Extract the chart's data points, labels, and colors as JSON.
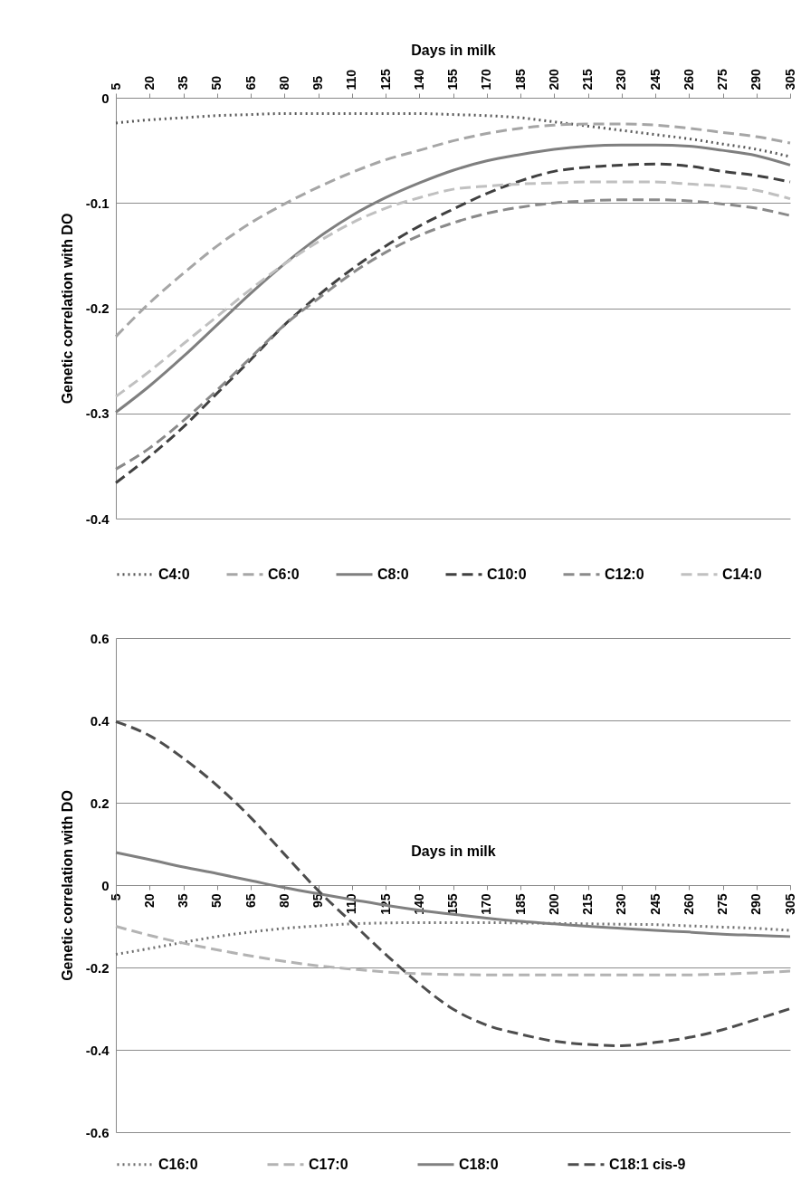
{
  "chart_data": [
    {
      "type": "line",
      "xlabel": "Days in milk",
      "ylabel": "Genetic correlation with DO",
      "x": [
        5,
        20,
        35,
        50,
        65,
        80,
        95,
        110,
        125,
        140,
        155,
        170,
        185,
        200,
        215,
        230,
        245,
        260,
        275,
        290,
        305
      ],
      "xlim": [
        5,
        305
      ],
      "xticks": [
        5,
        20,
        35,
        50,
        65,
        80,
        95,
        110,
        125,
        140,
        155,
        170,
        185,
        200,
        215,
        230,
        245,
        260,
        275,
        290,
        305
      ],
      "ylim": [
        -0.4,
        0
      ],
      "yticks": [
        -0.4,
        -0.3,
        -0.2,
        -0.1,
        0
      ],
      "grid": "y",
      "legend": "bottom",
      "series": [
        {
          "name": "C4:0",
          "color": "#595959",
          "line_style": "dotted",
          "values": [
            -0.024,
            -0.021,
            -0.019,
            -0.017,
            -0.016,
            -0.015,
            -0.015,
            -0.015,
            -0.015,
            -0.015,
            -0.016,
            -0.017,
            -0.019,
            -0.023,
            -0.027,
            -0.031,
            -0.035,
            -0.039,
            -0.044,
            -0.049,
            -0.056
          ]
        },
        {
          "name": "C6:0",
          "color": "#a6a6a6",
          "line_style": "dashed",
          "values": [
            -0.227,
            -0.195,
            -0.167,
            -0.141,
            -0.119,
            -0.101,
            -0.085,
            -0.071,
            -0.059,
            -0.05,
            -0.041,
            -0.034,
            -0.029,
            -0.026,
            -0.025,
            -0.025,
            -0.026,
            -0.029,
            -0.033,
            -0.037,
            -0.043
          ]
        },
        {
          "name": "C8:0",
          "color": "#7f7f7f",
          "line_style": "solid",
          "values": [
            -0.299,
            -0.274,
            -0.246,
            -0.216,
            -0.186,
            -0.158,
            -0.133,
            -0.112,
            -0.095,
            -0.081,
            -0.069,
            -0.06,
            -0.054,
            -0.049,
            -0.046,
            -0.045,
            -0.045,
            -0.046,
            -0.05,
            -0.055,
            -0.064
          ]
        },
        {
          "name": "C10:0",
          "color": "#404040",
          "line_style": "dashed",
          "values": [
            -0.366,
            -0.341,
            -0.313,
            -0.281,
            -0.249,
            -0.216,
            -0.188,
            -0.163,
            -0.141,
            -0.122,
            -0.106,
            -0.091,
            -0.079,
            -0.07,
            -0.066,
            -0.064,
            -0.063,
            -0.065,
            -0.07,
            -0.074,
            -0.08
          ]
        },
        {
          "name": "C12:0",
          "color": "#8a8a8a",
          "line_style": "dashed",
          "values": [
            -0.353,
            -0.333,
            -0.307,
            -0.278,
            -0.247,
            -0.216,
            -0.191,
            -0.167,
            -0.147,
            -0.131,
            -0.119,
            -0.11,
            -0.104,
            -0.1,
            -0.098,
            -0.097,
            -0.097,
            -0.098,
            -0.101,
            -0.105,
            -0.112
          ]
        },
        {
          "name": "C14:0",
          "color": "#c0c0c0",
          "line_style": "dashed",
          "values": [
            -0.284,
            -0.26,
            -0.234,
            -0.208,
            -0.182,
            -0.158,
            -0.137,
            -0.119,
            -0.105,
            -0.095,
            -0.087,
            -0.084,
            -0.082,
            -0.081,
            -0.08,
            -0.08,
            -0.08,
            -0.082,
            -0.084,
            -0.088,
            -0.096
          ]
        }
      ]
    },
    {
      "type": "line",
      "xlabel": "Days in milk",
      "ylabel": "Genetic correlation with DO",
      "x": [
        5,
        20,
        35,
        50,
        65,
        80,
        95,
        110,
        125,
        140,
        155,
        170,
        185,
        200,
        215,
        230,
        245,
        260,
        275,
        290,
        305
      ],
      "xlim": [
        5,
        305
      ],
      "xticks": [
        5,
        20,
        35,
        50,
        65,
        80,
        95,
        110,
        125,
        140,
        155,
        170,
        185,
        200,
        215,
        230,
        245,
        260,
        275,
        290,
        305
      ],
      "ylim": [
        -0.6,
        0.6
      ],
      "yticks": [
        -0.6,
        -0.4,
        -0.2,
        0,
        0.2,
        0.4,
        0.6
      ],
      "grid": "y",
      "legend": "bottom",
      "series": [
        {
          "name": "C16:0",
          "color": "#6f6f6f",
          "line_style": "dotted",
          "values": [
            -0.168,
            -0.154,
            -0.139,
            -0.125,
            -0.114,
            -0.105,
            -0.099,
            -0.094,
            -0.092,
            -0.091,
            -0.091,
            -0.091,
            -0.092,
            -0.093,
            -0.094,
            -0.095,
            -0.096,
            -0.099,
            -0.102,
            -0.105,
            -0.11
          ]
        },
        {
          "name": "C17:0",
          "color": "#b3b3b3",
          "line_style": "dashed",
          "values": [
            -0.1,
            -0.122,
            -0.141,
            -0.157,
            -0.172,
            -0.185,
            -0.196,
            -0.204,
            -0.211,
            -0.215,
            -0.217,
            -0.218,
            -0.218,
            -0.218,
            -0.218,
            -0.218,
            -0.218,
            -0.218,
            -0.216,
            -0.213,
            -0.209
          ]
        },
        {
          "name": "C18:0",
          "color": "#808080",
          "line_style": "solid",
          "values": [
            0.079,
            0.062,
            0.044,
            0.028,
            0.011,
            -0.006,
            -0.021,
            -0.035,
            -0.049,
            -0.061,
            -0.071,
            -0.08,
            -0.088,
            -0.094,
            -0.1,
            -0.105,
            -0.11,
            -0.114,
            -0.119,
            -0.122,
            -0.125
          ]
        },
        {
          "name": "C18:1 cis-9",
          "color": "#4d4d4d",
          "line_style": "dashed",
          "values": [
            0.397,
            0.363,
            0.308,
            0.242,
            0.164,
            0.075,
            -0.013,
            -0.091,
            -0.168,
            -0.24,
            -0.301,
            -0.34,
            -0.362,
            -0.379,
            -0.387,
            -0.39,
            -0.382,
            -0.37,
            -0.351,
            -0.326,
            -0.3
          ]
        }
      ]
    }
  ]
}
